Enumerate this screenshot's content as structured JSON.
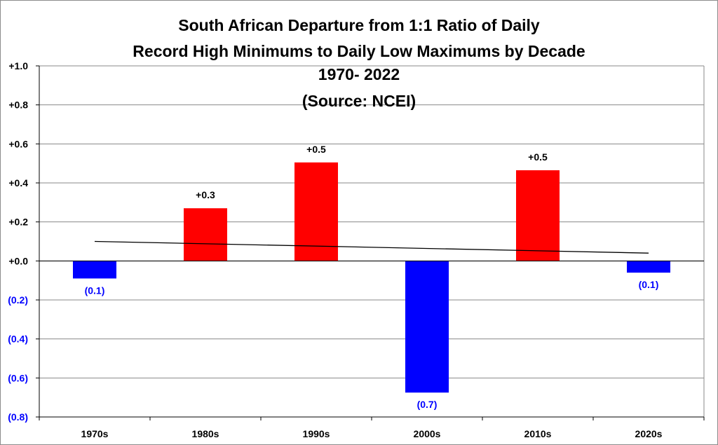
{
  "chart_data": {
    "type": "bar",
    "title_lines": [
      "South African Departure from 1:1 Ratio of Daily",
      "Record High Minimums to Daily Low Maximums by Decade",
      "1970- 2022",
      "(Source: NCEI)"
    ],
    "categories": [
      "1970s",
      "1980s",
      "1990s",
      "2000s",
      "2010s",
      "2020s"
    ],
    "values": [
      -0.09,
      0.27,
      0.505,
      -0.675,
      0.465,
      -0.06
    ],
    "data_labels": [
      "(0.1)",
      "+0.3",
      "+0.5",
      "(0.7)",
      "+0.5",
      "(0.1)"
    ],
    "ylim": [
      -0.8,
      1.0
    ],
    "y_ticks": [
      1.0,
      0.8,
      0.6,
      0.4,
      0.2,
      0.0,
      -0.2,
      -0.4,
      -0.6,
      -0.8
    ],
    "y_tick_labels": [
      "+1.0",
      "+0.8",
      "+0.6",
      "+0.4",
      "+0.2",
      "+0.0",
      "(0.2)",
      "(0.4)",
      "(0.6)",
      "(0.8)"
    ],
    "trendline": {
      "start": 0.1,
      "end": 0.04
    },
    "grid": true,
    "legend": "none",
    "colors": {
      "positive": "#ff0000",
      "negative": "#0000ff",
      "positive_label": "#000000",
      "negative_label": "#0000ff",
      "trendline": "#000000",
      "grid": "#888888"
    }
  }
}
